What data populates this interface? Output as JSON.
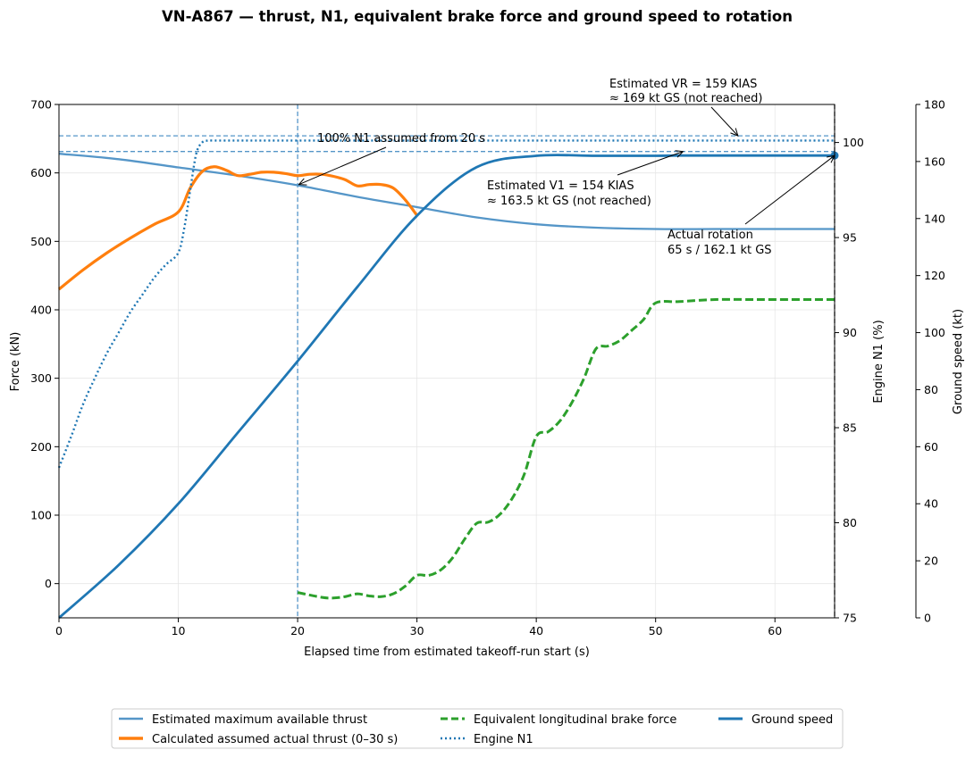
{
  "chart_data": {
    "type": "line",
    "title": "VN-A867 — thrust, N1, equivalent brake force and ground speed to rotation",
    "xlabel": "Elapsed time from estimated takeoff-run start (s)",
    "ylabel": "Force (kN)",
    "ylabel_n1": "Engine N1 (%)",
    "ylabel_gs": "Ground speed (kt)",
    "xlim": [
      0,
      65
    ],
    "ylim": [
      -50,
      700
    ],
    "ylim_n1": [
      75,
      102
    ],
    "ylim_gs": [
      0,
      180
    ],
    "xticks": [
      "0",
      "10",
      "20",
      "30",
      "40",
      "50",
      "60"
    ],
    "yticks": [
      "0",
      "100",
      "200",
      "300",
      "400",
      "500",
      "600",
      "700"
    ],
    "yticks_n1": [
      "75",
      "80",
      "85",
      "90",
      "95",
      "100"
    ],
    "yticks_gs": [
      "0",
      "20",
      "40",
      "60",
      "80",
      "100",
      "120",
      "140",
      "160",
      "180"
    ],
    "grid": true,
    "legend_position": "bottom-center",
    "colors": {
      "max_thrust": "#5596c8",
      "actual_thrust": "#ff7f0e",
      "brake": "#2ca02c",
      "n1": "#1f77b4",
      "gs": "#1f77b4",
      "refline": "#5596c8"
    },
    "series": [
      {
        "name": "Estimated maximum available thrust",
        "axis": "force",
        "style": "solid",
        "x": [
          0,
          5,
          10,
          15,
          20,
          25,
          30,
          35,
          40,
          45,
          50,
          55,
          60,
          65
        ],
        "y": [
          628,
          620,
          608,
          596,
          582,
          565,
          550,
          535,
          525,
          520,
          518,
          518,
          518,
          518
        ]
      },
      {
        "name": "Calculated assumed actual thrust (0–30 s)",
        "axis": "force",
        "style": "solid-thick",
        "x": [
          0,
          2,
          4,
          6,
          8,
          10,
          11,
          12,
          13,
          14,
          15,
          16,
          17,
          18,
          19,
          20,
          21,
          22,
          23,
          24,
          25,
          26,
          27,
          28,
          29,
          30
        ],
        "y": [
          430,
          458,
          483,
          505,
          525,
          543,
          578,
          602,
          609,
          604,
          596,
          598,
          601,
          601,
          599,
          596,
          598,
          598,
          595,
          590,
          581,
          583,
          583,
          578,
          561,
          538
        ]
      },
      {
        "name": "Equivalent longitudinal brake force",
        "axis": "force",
        "style": "dashed",
        "x": [
          20,
          22,
          23,
          24,
          25,
          26,
          27,
          28,
          29,
          30,
          31,
          32,
          33,
          34,
          35,
          36,
          37,
          38,
          39,
          40,
          41,
          42,
          43,
          44,
          45,
          46,
          47,
          48,
          49,
          50,
          52,
          55,
          58,
          60,
          65
        ],
        "y": [
          -13,
          -20,
          -21,
          -19,
          -15,
          -18,
          -19,
          -15,
          -4,
          12,
          12,
          20,
          38,
          65,
          88,
          90,
          102,
          125,
          160,
          215,
          222,
          238,
          265,
          300,
          343,
          347,
          355,
          370,
          386,
          410,
          412,
          415,
          415,
          415,
          415
        ]
      },
      {
        "name": "Engine N1",
        "axis": "n1",
        "style": "dotted",
        "x": [
          0,
          1,
          2,
          3,
          4,
          5,
          6,
          7,
          8,
          9,
          10,
          10.5,
          11,
          11.5,
          12,
          12.5,
          13,
          15,
          20,
          30,
          40,
          50,
          60,
          65
        ],
        "y": [
          82.9,
          84.5,
          86.2,
          87.6,
          88.9,
          90.0,
          91.1,
          92.0,
          92.9,
          93.6,
          94.2,
          95.5,
          97.5,
          99.4,
          100.0,
          100.1,
          100.1,
          100.1,
          100.1,
          100.1,
          100.1,
          100.1,
          100.1,
          100.1
        ]
      },
      {
        "name": "Ground speed",
        "axis": "gs",
        "style": "solid",
        "x": [
          0,
          5,
          10,
          15,
          20,
          25,
          30,
          35,
          40,
          45,
          50,
          52,
          55,
          60,
          65
        ],
        "y": [
          0,
          18.5,
          40,
          65,
          90,
          116,
          141,
          158,
          162,
          162,
          162,
          162.1,
          162.1,
          162.1,
          162.1
        ]
      }
    ],
    "reference_lines": {
      "v1_gs": 163.5,
      "vr_gs": 169,
      "t_assumed": 20,
      "t_rotation": 65
    },
    "rotation_point": {
      "x": 65,
      "y": 162.1
    },
    "annotations": {
      "n1": "100% N1 assumed from 20 s",
      "v1_line1": "Estimated V1 = 154 KIAS",
      "v1_line2": "≈ 163.5 kt GS (not reached)",
      "vr_line1": "Estimated VR = 159 KIAS",
      "vr_line2": "≈ 169 kt GS (not reached)",
      "rot_line1": "Actual rotation",
      "rot_line2": "65 s / 162.1 kt GS"
    }
  }
}
